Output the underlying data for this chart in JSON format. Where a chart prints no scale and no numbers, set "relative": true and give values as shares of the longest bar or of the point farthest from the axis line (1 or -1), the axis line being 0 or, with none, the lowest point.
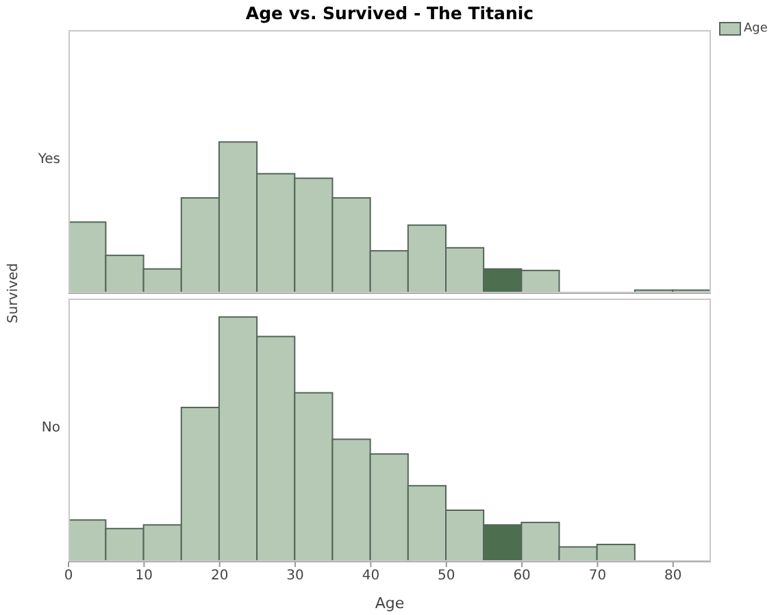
{
  "chart_data": [
    {
      "type": "bar",
      "title": "Age vs. Survived - The Titanic",
      "ylabel": "Yes",
      "annotations": [
        "Survived"
      ],
      "relative": true,
      "legend": "top right",
      "tick_labels": false,
      "xlim": [
        0,
        85
      ],
      "xticks": [
        0,
        10,
        20,
        30,
        40,
        50,
        60,
        70,
        80
      ],
      "x": [
        2.5,
        7.5,
        12.5,
        17.5,
        22.5,
        27.5,
        32.5,
        37.5,
        42.5,
        47.5,
        52.5,
        57.5,
        62.5,
        67.5,
        72.5,
        77.5,
        82.5
      ],
      "series": [
        {
          "name": "Age",
          "color": "#b5c9b5",
          "colors": [
            "#b5c9b5",
            "#b5c9b5",
            "#b5c9b5",
            "#b5c9b5",
            "#b5c9b5",
            "#b5c9b5",
            "#b5c9b5",
            "#b5c9b5",
            "#b5c9b5",
            "#b5c9b5",
            "#b5c9b5",
            "#4e6e50",
            "#b5c9b5",
            "#b5c9b5",
            "#b5c9b5",
            "#b5c9b5",
            "#b5c9b5"
          ],
          "values": [
            0.47,
            0.25,
            0.16,
            0.63,
            1,
            0.79,
            0.76,
            0.63,
            0.28,
            0.45,
            0.3,
            0.16,
            0.15,
            0,
            0,
            0.02,
            0.02
          ]
        }
      ]
    },
    {
      "type": "bar",
      "ylabel": "No",
      "xlabel": "Age",
      "relative": true,
      "tick_labels": "x",
      "xlim": [
        0,
        85
      ],
      "xticks": [
        0,
        10,
        20,
        30,
        40,
        50,
        60,
        70,
        80
      ],
      "x": [
        2.5,
        7.5,
        12.5,
        17.5,
        22.5,
        27.5,
        32.5,
        37.5,
        42.5,
        47.5,
        52.5,
        57.5,
        62.5,
        67.5,
        72.5,
        77.5,
        82.5
      ],
      "series": [
        {
          "color": "#b5c9b5",
          "colors": [
            "#b5c9b5",
            "#b5c9b5",
            "#b5c9b5",
            "#b5c9b5",
            "#b5c9b5",
            "#b5c9b5",
            "#b5c9b5",
            "#b5c9b5",
            "#b5c9b5",
            "#b5c9b5",
            "#b5c9b5",
            "#4e6e50",
            "#b5c9b5",
            "#b5c9b5",
            "#b5c9b5",
            "#b5c9b5",
            "#b5c9b5"
          ],
          "values": [
            0.17,
            0.135,
            0.15,
            0.63,
            1,
            0.92,
            0.69,
            0.5,
            0.44,
            0.31,
            0.21,
            0.15,
            0.16,
            0.06,
            0.07,
            0,
            0
          ]
        }
      ]
    }
  ]
}
